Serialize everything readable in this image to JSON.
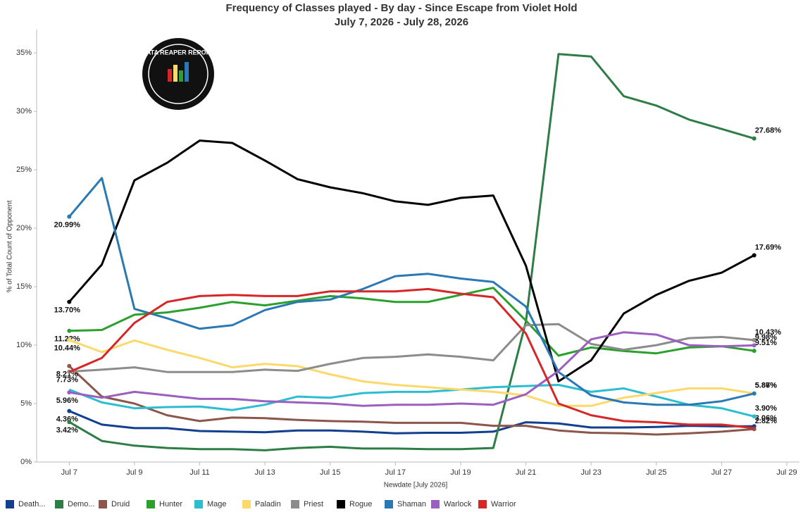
{
  "chart_data": {
    "type": "line",
    "title": "Frequency of Classes played - By day - Since Escape from Violet Hold",
    "subtitle": "July 7, 2026 - July 28, 2026",
    "x_label": "Newdate [July 2026]",
    "y_label": "% of Total Count of Opponent",
    "logo": "DATA REAPER REPORT",
    "x": [
      "2026-07-07",
      "2026-07-08",
      "2026-07-09",
      "2026-07-10",
      "2026-07-11",
      "2026-07-12",
      "2026-07-13",
      "2026-07-14",
      "2026-07-15",
      "2026-07-16",
      "2026-07-17",
      "2026-07-18",
      "2026-07-19",
      "2026-07-20",
      "2026-07-21",
      "2026-07-22",
      "2026-07-23",
      "2026-07-24",
      "2026-07-25",
      "2026-07-26",
      "2026-07-27",
      "2026-07-28"
    ],
    "xlim": [
      "2026-07-06",
      "2026-07-29"
    ],
    "xticks": [
      {
        "value": "2026-07-07",
        "label": "Jul 7"
      },
      {
        "value": "2026-07-09",
        "label": "Jul 9"
      },
      {
        "value": "2026-07-11",
        "label": "Jul 11"
      },
      {
        "value": "2026-07-13",
        "label": "Jul 13"
      },
      {
        "value": "2026-07-15",
        "label": "Jul 15"
      },
      {
        "value": "2026-07-17",
        "label": "Jul 17"
      },
      {
        "value": "2026-07-19",
        "label": "Jul 19"
      },
      {
        "value": "2026-07-21",
        "label": "Jul 21"
      },
      {
        "value": "2026-07-23",
        "label": "Jul 23"
      },
      {
        "value": "2026-07-25",
        "label": "Jul 25"
      },
      {
        "value": "2026-07-27",
        "label": "Jul 27"
      },
      {
        "value": "2026-07-29",
        "label": "Jul 29"
      }
    ],
    "ylim": [
      0,
      37
    ],
    "yticks": [
      {
        "value": 0,
        "label": "0%"
      },
      {
        "value": 5,
        "label": "5%"
      },
      {
        "value": 10,
        "label": "10%"
      },
      {
        "value": 15,
        "label": "15%"
      },
      {
        "value": 20,
        "label": "20%"
      },
      {
        "value": 25,
        "label": "25%"
      },
      {
        "value": 30,
        "label": "30%"
      },
      {
        "value": 35,
        "label": "35%"
      }
    ],
    "grid": false,
    "legend": "bottom",
    "series": [
      {
        "name": "Death...",
        "color": "#123f8f",
        "values": [
          4.36,
          3.2,
          2.9,
          2.9,
          2.65,
          2.6,
          2.55,
          2.7,
          2.7,
          2.6,
          2.45,
          2.5,
          2.5,
          2.6,
          3.4,
          3.3,
          2.95,
          2.95,
          3.0,
          3.1,
          3.05,
          3.06
        ],
        "value_labels": [
          "4.36%",
          null,
          null,
          null,
          null,
          null,
          null,
          null,
          null,
          null,
          null,
          null,
          null,
          null,
          null,
          null,
          null,
          null,
          null,
          null,
          null,
          "3.06%"
        ]
      },
      {
        "name": "Demo...",
        "color": "#2e7d46",
        "values": [
          3.42,
          1.8,
          1.4,
          1.2,
          1.1,
          1.1,
          1.0,
          1.2,
          1.3,
          1.15,
          1.15,
          1.1,
          1.1,
          1.2,
          12.0,
          34.9,
          34.7,
          31.3,
          30.5,
          29.3,
          28.5,
          27.68
        ],
        "value_labels": [
          "3.42%",
          null,
          null,
          null,
          null,
          null,
          null,
          null,
          null,
          null,
          null,
          null,
          null,
          null,
          null,
          null,
          null,
          null,
          null,
          null,
          null,
          "27.68%"
        ]
      },
      {
        "name": "Druid",
        "color": "#8c564b",
        "values": [
          8.21,
          5.6,
          5.0,
          4.0,
          3.5,
          3.8,
          3.75,
          3.6,
          3.5,
          3.45,
          3.35,
          3.35,
          3.35,
          3.1,
          3.1,
          2.7,
          2.5,
          2.45,
          2.35,
          2.45,
          2.6,
          2.82
        ],
        "value_labels": [
          "8.21%",
          null,
          null,
          null,
          null,
          null,
          null,
          null,
          null,
          null,
          null,
          null,
          null,
          null,
          null,
          null,
          null,
          null,
          null,
          null,
          null,
          "2.82%"
        ]
      },
      {
        "name": "Hunter",
        "color": "#2ca02c",
        "values": [
          11.22,
          11.3,
          12.6,
          12.8,
          13.2,
          13.7,
          13.4,
          13.8,
          14.2,
          14.0,
          13.7,
          13.7,
          14.3,
          14.9,
          12.1,
          9.1,
          9.8,
          9.5,
          9.3,
          9.8,
          9.9,
          9.51
        ],
        "value_labels": [
          "11.22%",
          null,
          null,
          null,
          null,
          null,
          null,
          null,
          null,
          null,
          null,
          null,
          null,
          null,
          null,
          null,
          null,
          null,
          null,
          null,
          null,
          "9.51%"
        ]
      },
      {
        "name": "Mage",
        "color": "#2bbdd0",
        "values": [
          6.2,
          5.1,
          4.6,
          4.7,
          4.75,
          4.45,
          4.9,
          5.6,
          5.5,
          5.9,
          6.0,
          6.0,
          6.2,
          6.4,
          6.5,
          6.6,
          6.0,
          6.3,
          5.6,
          4.9,
          4.6,
          3.9
        ],
        "value_labels": [
          null,
          null,
          null,
          null,
          null,
          null,
          null,
          null,
          null,
          null,
          null,
          null,
          null,
          null,
          null,
          null,
          null,
          null,
          null,
          null,
          null,
          "3.90%"
        ]
      },
      {
        "name": "Paladin",
        "color": "#fcd96a",
        "values": [
          10.44,
          9.4,
          10.4,
          9.6,
          8.9,
          8.1,
          8.4,
          8.2,
          7.5,
          6.9,
          6.6,
          6.4,
          6.2,
          6.0,
          5.7,
          4.8,
          4.8,
          5.5,
          5.9,
          6.3,
          6.3,
          5.87
        ],
        "value_labels": [
          "10.44%",
          null,
          null,
          null,
          null,
          null,
          null,
          null,
          null,
          null,
          null,
          null,
          null,
          null,
          null,
          null,
          null,
          null,
          null,
          null,
          null,
          "5.87%"
        ]
      },
      {
        "name": "Priest",
        "color": "#8c8c8c",
        "values": [
          7.73,
          7.9,
          8.1,
          7.7,
          7.7,
          7.7,
          7.9,
          7.8,
          8.4,
          8.9,
          9.0,
          9.2,
          9.0,
          8.7,
          11.7,
          11.8,
          10.1,
          9.6,
          10.0,
          10.6,
          10.7,
          10.43
        ],
        "value_labels": [
          "7.73%",
          null,
          null,
          null,
          null,
          null,
          null,
          null,
          null,
          null,
          null,
          null,
          null,
          null,
          null,
          null,
          null,
          null,
          null,
          null,
          null,
          "10.43%"
        ]
      },
      {
        "name": "Rogue",
        "color": "#000000",
        "values": [
          13.7,
          16.9,
          24.1,
          25.6,
          27.5,
          27.3,
          25.8,
          24.2,
          23.5,
          23.0,
          22.3,
          22.0,
          22.6,
          22.8,
          16.8,
          6.9,
          8.7,
          12.7,
          14.3,
          15.5,
          16.2,
          17.69
        ],
        "value_labels": [
          "13.70%",
          null,
          null,
          null,
          null,
          null,
          null,
          null,
          null,
          null,
          null,
          null,
          null,
          null,
          null,
          null,
          null,
          null,
          null,
          null,
          null,
          "17.69%"
        ]
      },
      {
        "name": "Shaman",
        "color": "#2a78b4",
        "values": [
          20.99,
          24.3,
          13.1,
          12.3,
          11.4,
          11.7,
          13.0,
          13.7,
          13.9,
          14.8,
          15.9,
          16.1,
          15.7,
          15.4,
          13.3,
          7.7,
          5.7,
          5.1,
          4.9,
          4.9,
          5.2,
          5.86
        ],
        "value_labels": [
          "20.99%",
          null,
          null,
          null,
          null,
          null,
          null,
          null,
          null,
          null,
          null,
          null,
          null,
          null,
          null,
          null,
          null,
          null,
          null,
          null,
          null,
          "5.86%"
        ]
      },
      {
        "name": "Warlock",
        "color": "#9b5fc0",
        "values": [
          5.96,
          5.5,
          6.0,
          5.7,
          5.4,
          5.4,
          5.2,
          5.1,
          5.0,
          4.8,
          4.9,
          4.9,
          5.0,
          4.9,
          5.8,
          7.8,
          10.5,
          11.1,
          10.9,
          10.0,
          9.9,
          9.98
        ],
        "value_labels": [
          "5.96%",
          null,
          null,
          null,
          null,
          null,
          null,
          null,
          null,
          null,
          null,
          null,
          null,
          null,
          null,
          null,
          null,
          null,
          null,
          null,
          null,
          "9.98%"
        ]
      },
      {
        "name": "Warrior",
        "color": "#d62728",
        "values": [
          7.7,
          8.9,
          11.9,
          13.7,
          14.2,
          14.3,
          14.2,
          14.2,
          14.6,
          14.6,
          14.6,
          14.8,
          14.4,
          14.1,
          11.0,
          5.0,
          4.0,
          3.5,
          3.4,
          3.2,
          3.2,
          2.9
        ]
      }
    ]
  }
}
